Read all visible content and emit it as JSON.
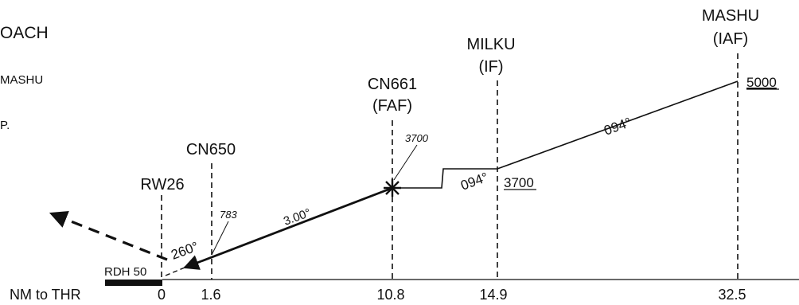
{
  "header_fragments": {
    "title_fragment": "OACH",
    "line2_fragment": "MASHU",
    "line3_fragment": "P."
  },
  "fixes": {
    "mashu": {
      "name": "MASHU",
      "role": "(IAF)",
      "altitude": "5000",
      "distance": "32.5"
    },
    "milku": {
      "name": "MILKU",
      "role": "(IF)",
      "altitude": "3700",
      "distance": "14.9"
    },
    "cn661": {
      "name": "CN661",
      "role": "(FAF)",
      "altitude": "3700",
      "distance": "10.8"
    },
    "cn650": {
      "name": "CN650",
      "altitude": "783",
      "distance": "1.6"
    },
    "rw26": {
      "name": "RW26",
      "distance": "0"
    }
  },
  "path": {
    "inbound_course_upper": "094°",
    "inbound_course_lower": "094°",
    "glidepath_angle": "3.00°",
    "missed_approach_course": "260°"
  },
  "threshold": {
    "rdh_label": "RDH 50",
    "axis_label": "NM to THR"
  },
  "colors": {
    "ink": "#111111",
    "background": "#ffffff"
  }
}
